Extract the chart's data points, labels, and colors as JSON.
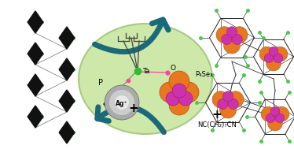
{
  "bg_color": "#ffffff",
  "ellipse_color": "#c8e6a0",
  "ellipse_edge": "#a0c878",
  "arrow_color": "#1a6a7a",
  "figsize": [
    3.74,
    1.89
  ],
  "dpi": 100,
  "ta_label": "Ta",
  "o_label": "O",
  "p_label": "P",
  "ag_label": "Ag⁺",
  "p4se3_label": "P₄Se₃",
  "nc_label": "NC(CH₂)₇CN"
}
